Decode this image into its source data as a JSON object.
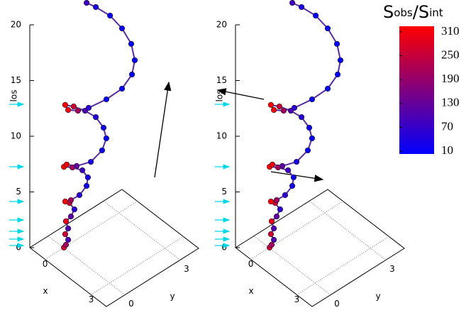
{
  "chart_data": {
    "type": "scatter3d",
    "xlabel": "x",
    "ylabel": "y",
    "zlabel": "los",
    "xlim": [
      -1,
      4
    ],
    "ylim": [
      -1,
      4
    ],
    "zlim": [
      0,
      20
    ],
    "xticks": [
      0,
      3
    ],
    "yticks": [
      0,
      3
    ],
    "zticks": [
      0,
      5,
      10,
      15,
      20
    ],
    "grid": true,
    "x": [
      0,
      0,
      0,
      0,
      0,
      0,
      0,
      0,
      0,
      0,
      0,
      0,
      0,
      0,
      0,
      0,
      0,
      0,
      0,
      0,
      0,
      0,
      0,
      0,
      0,
      0,
      0,
      0,
      0,
      0,
      0,
      0,
      0,
      0,
      0,
      0,
      0,
      0,
      0
    ],
    "y": [
      0.02,
      0.13,
      0.25,
      0.09,
      0.25,
      0.13,
      0.4,
      0.59,
      0.32,
      0.09,
      0.4,
      0.86,
      1.25,
      1.32,
      1.02,
      0.48,
      0.02,
      0.17,
      0.71,
      1.48,
      2.09,
      2.32,
      2.17,
      1.75,
      1.17,
      0.55,
      0.09,
      0.25,
      0.78,
      1.36,
      2.32,
      3.17,
      3.71,
      3.86,
      3.67,
      3.17,
      2.52,
      1.75,
      1.25
    ],
    "los": [
      0,
      0.13,
      0.45,
      1.13,
      1.47,
      2.24,
      2.39,
      2.83,
      3.69,
      4.06,
      3.86,
      3.83,
      4.25,
      4.94,
      5.89,
      6.71,
      7.25,
      7.29,
      6.6,
      6.17,
      6.56,
      7.4,
      8.51,
      9.9,
      11.08,
      12.11,
      12.73,
      12.11,
      11.49,
      11.14,
      10.9,
      10.97,
      11.68,
      12.8,
      14.47,
      16.38,
      18.21,
      19.78,
      20.68
    ],
    "values": [
      250,
      200,
      100,
      250,
      100,
      280,
      120,
      60,
      250,
      300,
      200,
      60,
      30,
      30,
      80,
      200,
      310,
      300,
      120,
      40,
      20,
      20,
      30,
      50,
      100,
      250,
      310,
      300,
      200,
      60,
      20,
      15,
      15,
      15,
      15,
      20,
      20,
      40,
      80
    ],
    "colorbar": {
      "label": [
        "S",
        "obs",
        "/",
        "S",
        "int"
      ],
      "lim": [
        10,
        310
      ],
      "ticks": [
        310,
        250,
        190,
        130,
        70,
        10
      ],
      "colors": [
        "#0000ff",
        "#ff0000"
      ]
    }
  }
}
